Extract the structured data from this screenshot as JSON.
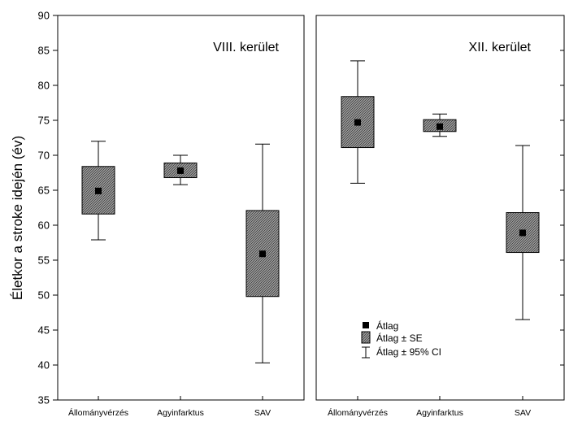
{
  "chart_data": {
    "type": "box",
    "ylabel": "Életkor a stroke idején (év)",
    "ylim": [
      35,
      90
    ],
    "yticks": [
      35,
      40,
      45,
      50,
      55,
      60,
      65,
      70,
      75,
      80,
      85,
      90
    ],
    "categories": [
      "Állományvérzés",
      "Agyinfarktus",
      "SAV"
    ],
    "panels": [
      {
        "title": "VIII. kerület",
        "mean": [
          64.9,
          67.8,
          55.9
        ],
        "se_low": [
          61.6,
          66.8,
          49.8
        ],
        "se_high": [
          68.4,
          68.9,
          62.1
        ],
        "ci_low": [
          57.9,
          65.8,
          40.3
        ],
        "ci_high": [
          72.0,
          70.0,
          71.6
        ]
      },
      {
        "title": "XII. kerület",
        "mean": [
          74.7,
          74.1,
          58.9
        ],
        "se_low": [
          71.1,
          73.4,
          56.1
        ],
        "se_high": [
          78.4,
          75.1,
          61.8
        ],
        "ci_low": [
          66.0,
          72.7,
          46.5
        ],
        "ci_high": [
          83.5,
          75.9,
          71.4
        ]
      }
    ],
    "legend": [
      "Átlag",
      "Átlag ± SE",
      "Átlag ± 95% CI"
    ],
    "grid": false
  }
}
